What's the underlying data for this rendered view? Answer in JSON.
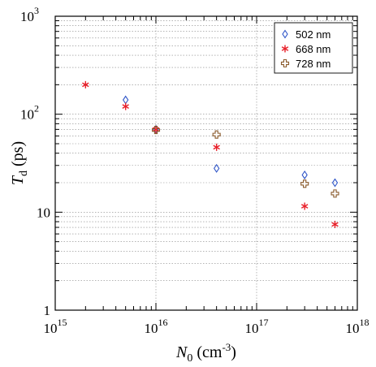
{
  "chart_data": {
    "type": "scatter",
    "x_scale": "log",
    "y_scale": "log",
    "xlim": [
      1000000000000000.0,
      1e+18
    ],
    "ylim": [
      1,
      1000
    ],
    "grid": true,
    "legend_position": "top-right",
    "xlabel": {
      "main": "N",
      "sub": "0",
      "rest": " (cm",
      "sup": "-3",
      "end": ")"
    },
    "ylabel": {
      "main": "T",
      "sub": "d",
      "rest": " (ps)"
    },
    "x_ticks": [
      {
        "base": "10",
        "exp": "15",
        "value": 1000000000000000.0
      },
      {
        "base": "10",
        "exp": "16",
        "value": 1e+16
      },
      {
        "base": "10",
        "exp": "17",
        "value": 1e+17
      },
      {
        "base": "10",
        "exp": "18",
        "value": 1e+18
      }
    ],
    "y_ticks": [
      {
        "label": "1",
        "value": 1
      },
      {
        "label": "10",
        "value": 10
      },
      {
        "label": "10",
        "exp": "2",
        "value": 100
      },
      {
        "label": "10",
        "exp": "3",
        "value": 1000
      }
    ],
    "series": [
      {
        "name": "502 nm",
        "marker": "diamond",
        "color": "#2f55c8",
        "points": [
          [
            5000000000000000.0,
            140
          ],
          [
            1e+16,
            70
          ],
          [
            4e+16,
            28
          ],
          [
            3e+17,
            24
          ],
          [
            6e+17,
            20
          ]
        ]
      },
      {
        "name": "668 nm",
        "marker": "asterisk",
        "color": "#e8202a",
        "points": [
          [
            2000000000000000.0,
            200
          ],
          [
            5000000000000000.0,
            120
          ],
          [
            1e+16,
            70
          ],
          [
            4e+16,
            46
          ],
          [
            3e+17,
            11.5
          ],
          [
            6e+17,
            7.5
          ]
        ]
      },
      {
        "name": "728 nm",
        "marker": "cross",
        "color": "#8a5a2b",
        "points": [
          [
            1e+16,
            69
          ],
          [
            4e+16,
            62
          ],
          [
            3e+17,
            19.5
          ],
          [
            6e+17,
            15.5
          ]
        ]
      }
    ]
  }
}
